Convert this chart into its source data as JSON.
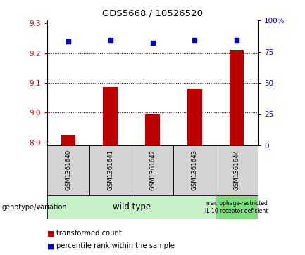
{
  "title": "GDS5668 / 10526520",
  "samples": [
    "GSM1361640",
    "GSM1361641",
    "GSM1361642",
    "GSM1361643",
    "GSM1361644"
  ],
  "transformed_counts": [
    8.925,
    9.085,
    8.997,
    9.082,
    9.212
  ],
  "percentile_ranks": [
    83,
    84,
    82,
    84,
    84
  ],
  "ylim_left": [
    8.89,
    9.31
  ],
  "ylim_right": [
    0,
    100
  ],
  "yticks_left": [
    8.9,
    9.0,
    9.1,
    9.2,
    9.3
  ],
  "yticks_right": [
    0,
    25,
    50,
    75,
    100
  ],
  "ytick_labels_right": [
    "0",
    "25",
    "50",
    "75",
    "100%"
  ],
  "bar_color": "#bb0000",
  "dot_color": "#0000bb",
  "bar_bottom": 8.89,
  "group1_samples": [
    0,
    1,
    2,
    3
  ],
  "group2_samples": [
    4
  ],
  "group1_label": "wild type",
  "group2_label": "macrophage-restricted\nIL-10 receptor deficient",
  "group1_color": "#c8f0c8",
  "group2_color": "#7ddd7d",
  "sample_box_color": "#d3d3d3",
  "legend_red_label": "transformed count",
  "legend_blue_label": "percentile rank within the sample",
  "genotype_label": "genotype/variation",
  "bar_width": 0.35
}
